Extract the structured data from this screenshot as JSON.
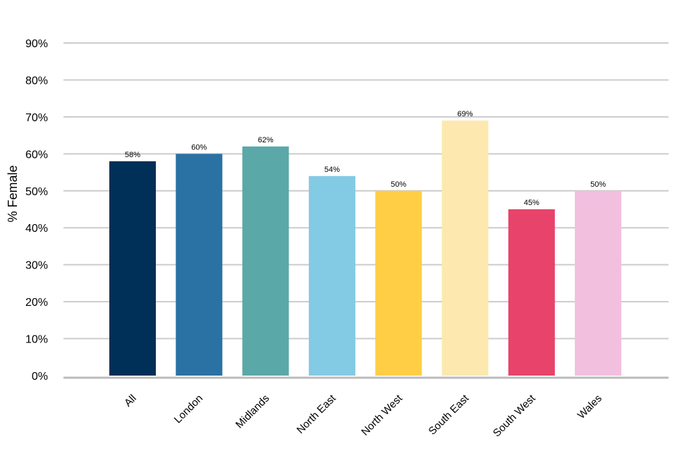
{
  "chart_data": {
    "type": "bar",
    "title": "",
    "xlabel": "",
    "ylabel": "% Female",
    "ylim": [
      0,
      90
    ],
    "y_ticks": [
      0,
      10,
      20,
      30,
      40,
      50,
      60,
      70,
      80,
      90
    ],
    "y_tick_format": "percent",
    "grid": "horizontal",
    "legend": "none",
    "categories": [
      "All",
      "London",
      "Midlands",
      "North East",
      "North West",
      "South East",
      "South West",
      "Wales"
    ],
    "values": [
      58,
      60,
      62,
      54,
      50,
      69,
      45,
      50
    ],
    "data_labels": [
      "58%",
      "60%",
      "62%",
      "54%",
      "50%",
      "69%",
      "45%",
      "50%"
    ],
    "colors": [
      "#003057",
      "#2a71a4",
      "#5ba8a8",
      "#83cae4",
      "#ffce45",
      "#fde8b0",
      "#e8436a",
      "#f3bfdf"
    ]
  }
}
